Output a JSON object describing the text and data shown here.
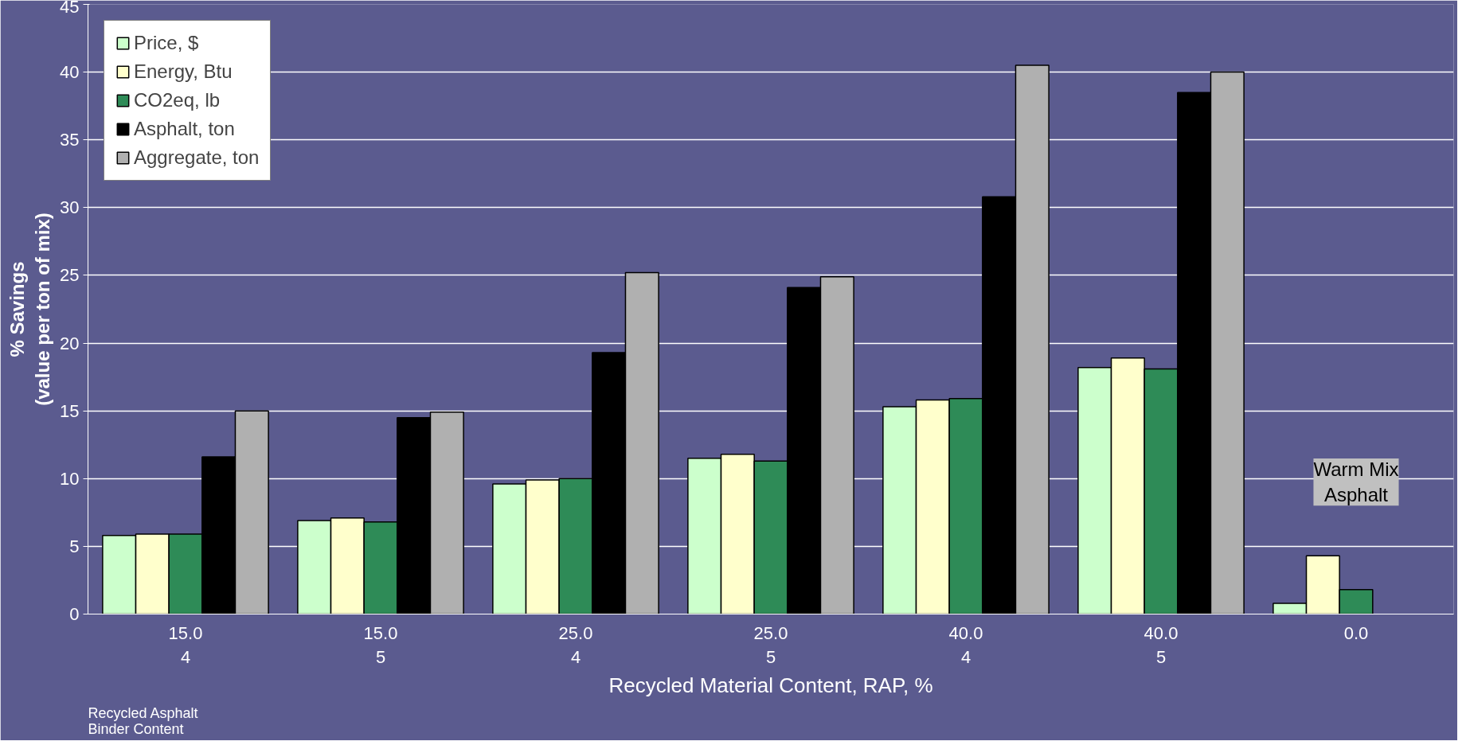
{
  "chart_data": {
    "type": "bar",
    "xlabel": "Recycled Material Content, RAP, %",
    "ylabel": "% Savings\n(value per ton of mix)",
    "categories": [
      "15.0\n4",
      "15.0\n5",
      "25.0\n4",
      "25.0\n5",
      "40.0\n4",
      "40.0\n5",
      "0.0"
    ],
    "series": [
      {
        "name": "Price, $",
        "color": "#ccffcc",
        "values": [
          5.8,
          6.9,
          9.6,
          11.5,
          15.3,
          18.2,
          0.8
        ]
      },
      {
        "name": "Energy, Btu",
        "color": "#ffffcc",
        "values": [
          5.9,
          7.1,
          9.9,
          11.8,
          15.8,
          18.9,
          4.3
        ]
      },
      {
        "name": "CO2eq, lb",
        "color": "#2e8b57",
        "values": [
          5.9,
          6.8,
          10.0,
          11.3,
          15.9,
          18.1,
          1.8
        ]
      },
      {
        "name": "Asphalt, ton",
        "color": "#000000",
        "values": [
          11.6,
          14.5,
          19.3,
          24.1,
          30.8,
          38.5,
          null
        ]
      },
      {
        "name": "Aggregate, ton",
        "color": "#b0b0b0",
        "values": [
          15.0,
          14.9,
          25.2,
          24.9,
          40.5,
          40.0,
          null
        ]
      }
    ],
    "ylim": [
      0,
      45
    ],
    "yticks": [
      0,
      5,
      10,
      15,
      20,
      25,
      30,
      35,
      40,
      45
    ],
    "grid": "y",
    "legend": "top left",
    "annotations": [
      "Recycled Asphalt\nBinder Content",
      "Warm Mix\nAsphalt"
    ]
  }
}
